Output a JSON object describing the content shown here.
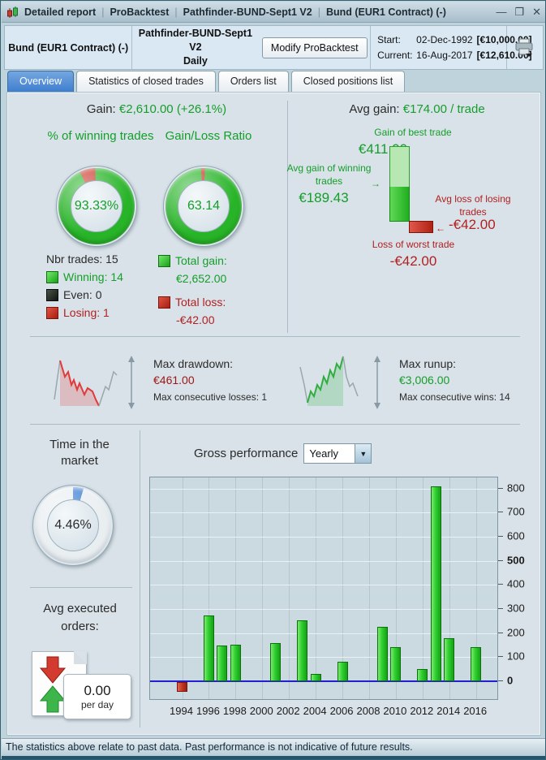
{
  "window": {
    "title_segments": [
      "Detailed report",
      "ProBacktest",
      "Pathfinder-BUND-Sept1 V2",
      "Bund (EUR1 Contract) (-)"
    ],
    "separator": "|",
    "controls": {
      "minimize": "—",
      "maximize": "❒",
      "close": "✕"
    }
  },
  "header": {
    "instrument": "Bund (EUR1 Contract) (-)",
    "strategy": "Pathfinder-BUND-Sept1 V2",
    "timeframe": "Daily",
    "modify_button": "Modify ProBacktest",
    "start_label": "Start:",
    "start_date": "02-Dec-1992",
    "start_value": "[€10,000.00]",
    "current_label": "Current:",
    "current_date": "16-Aug-2017",
    "current_value": "[€12,610.00]"
  },
  "tabs": [
    {
      "label": "Overview",
      "active": true
    },
    {
      "label": "Statistics of closed trades",
      "active": false
    },
    {
      "label": "Orders list",
      "active": false
    },
    {
      "label": "Closed positions list",
      "active": false
    }
  ],
  "overview": {
    "gain_label": "Gain:",
    "gain_value": "€2,610.00",
    "gain_pct": "(+26.1%)",
    "winning_donut_title": "% of winning trades",
    "winning_donut_value": "93.33%",
    "ratio_donut_title": "Gain/Loss Ratio",
    "ratio_donut_value": "63.14",
    "nbr_trades": "Nbr trades: 15",
    "winning": "Winning: 14",
    "even": "Even: 0",
    "losing": "Losing: 1",
    "total_gain_label": "Total gain:",
    "total_gain_value": "€2,652.00",
    "total_loss_label": "Total loss:",
    "total_loss_value": "-€42.00",
    "avg_gain_label": "Avg gain:",
    "avg_gain_value": "€174.00 / trade",
    "best_trade_label": "Gain of best trade",
    "best_trade_value": "€411.00",
    "avg_win_label": "Avg gain of winning trades",
    "avg_win_value": "€189.43",
    "avg_win_arrow": "→",
    "avg_loss_label": "Avg loss of losing trades",
    "avg_loss_value": "-€42.00",
    "avg_loss_arrow": "←",
    "worst_trade_label": "Loss of worst trade",
    "worst_trade_value": "-€42.00",
    "drawdown_label": "Max drawdown:",
    "drawdown_value": "€461.00",
    "drawdown_consec": "Max consecutive losses: 1",
    "runup_label": "Max runup:",
    "runup_value": "€3,006.00",
    "runup_consec": "Max consecutive wins: 14",
    "time_in_market_title": "Time in the market",
    "time_in_market_value": "4.46%",
    "avg_orders_title": "Avg executed orders:",
    "avg_orders_value": "0.00",
    "avg_orders_unit": "per day",
    "gross_performance_label": "Gross performance",
    "gross_performance_period": "Yearly"
  },
  "chart_data": {
    "type": "bar",
    "title": "Gross performance (Yearly)",
    "x": [
      1994,
      1996,
      1997,
      1998,
      2001,
      2003,
      2004,
      2006,
      2009,
      2010,
      2012,
      2013,
      2014,
      2016
    ],
    "values": [
      -42,
      272,
      147,
      152,
      157,
      252,
      30,
      80,
      227,
      140,
      50,
      810,
      180,
      140
    ],
    "xticks": [
      "1994",
      "1996",
      "1998",
      "2000",
      "2002",
      "2004",
      "2006",
      "2008",
      "2010",
      "2012",
      "2014",
      "2016"
    ],
    "yticks": [
      0,
      100,
      200,
      300,
      400,
      500,
      600,
      700,
      800
    ],
    "bold_yticks": [
      0,
      500
    ],
    "xlim": [
      1991.6,
      2017.6
    ],
    "ylim": [
      -74,
      846
    ],
    "grid": true,
    "legend": "none",
    "xlabel": "",
    "ylabel": ""
  },
  "status_bar": "The statistics above relate to past data. Past performance is not indicative of future results.",
  "colors": {
    "accent_green": "#149e2a",
    "accent_red": "#b22020",
    "dark_red": "#9e1515",
    "slice_red": "#c8372a",
    "donut_green": "#28b428",
    "blue_slice": "#3f7fd2",
    "zero_line": "#2020d0"
  }
}
